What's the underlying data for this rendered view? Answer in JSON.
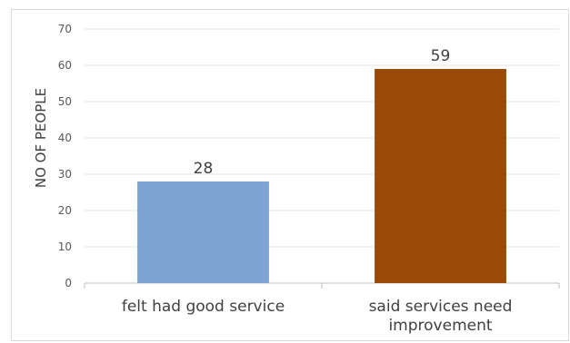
{
  "chart_data": {
    "type": "bar",
    "title": "",
    "xlabel": "",
    "ylabel": "NO OF PEOPLE",
    "ylim": [
      0,
      70
    ],
    "yticks": [
      0,
      10,
      20,
      30,
      40,
      50,
      60,
      70
    ],
    "grid": true,
    "legend": "none",
    "categories": [
      [
        "felt had good service"
      ],
      [
        "said services need",
        "improvement"
      ]
    ],
    "values": [
      28,
      59
    ],
    "colors": [
      "#7ea4d3",
      "#9a4a06"
    ],
    "data_labels": [
      "28",
      "59"
    ]
  }
}
